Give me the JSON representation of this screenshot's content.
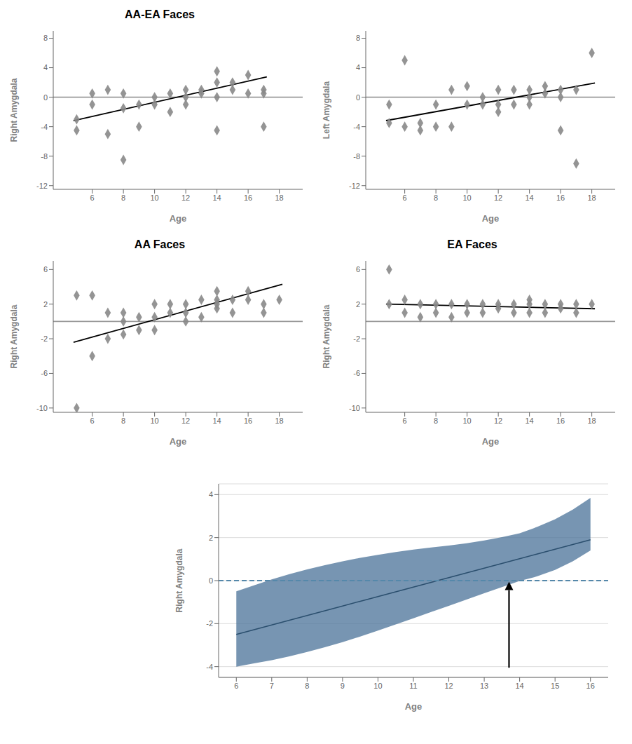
{
  "chart_data": [
    {
      "type": "scatter",
      "title": "AA-EA Faces",
      "xlabel": "Age",
      "ylabel": "Right Amygdala",
      "grid": false,
      "xlim": [
        3.5,
        19.5
      ],
      "xticks": [
        6,
        8,
        10,
        12,
        14,
        16,
        18
      ],
      "ylim": [
        -12.5,
        9
      ],
      "yticks": [
        -12,
        -8,
        -4,
        0,
        4,
        8
      ],
      "series": [
        {
          "type": "line",
          "color": "#999999",
          "x": [
            3.5,
            19.5
          ],
          "values": [
            0,
            0
          ]
        },
        {
          "type": "scatter",
          "color": "#888888",
          "marker": "diamond",
          "x": [
            5,
            5,
            6,
            6,
            7,
            7,
            8,
            8,
            8,
            9,
            9,
            10,
            10,
            11,
            11,
            12,
            12,
            12,
            13,
            13,
            14,
            14,
            14,
            14,
            15,
            15,
            16,
            16,
            17,
            17,
            17
          ],
          "values": [
            -4.5,
            -3,
            0.5,
            -1,
            1,
            -5,
            0.5,
            -1.5,
            -8.5,
            -1,
            -4,
            0,
            -1,
            -2,
            0.5,
            0,
            -1,
            1,
            1,
            0.5,
            2,
            3.5,
            0,
            -4.5,
            2,
            1,
            0.5,
            3,
            1,
            0.5,
            -4
          ]
        },
        {
          "type": "line",
          "color": "#000000",
          "x": [
            4.8,
            17.2
          ],
          "values": [
            -3.196,
            2.756
          ]
        }
      ]
    },
    {
      "type": "scatter",
      "xlabel": "Age",
      "ylabel": "Left Amygdala",
      "grid": false,
      "xlim": [
        3.5,
        19.5
      ],
      "xticks": [
        6,
        8,
        10,
        12,
        14,
        16,
        18
      ],
      "ylim": [
        -12.5,
        9
      ],
      "yticks": [
        -12,
        -8,
        -4,
        0,
        4,
        8
      ],
      "series": [
        {
          "type": "line",
          "color": "#999999",
          "x": [
            3.5,
            19.5
          ],
          "values": [
            0,
            0
          ]
        },
        {
          "type": "scatter",
          "color": "#888888",
          "marker": "diamond",
          "x": [
            5,
            5,
            6,
            6,
            7,
            7,
            8,
            8,
            9,
            9,
            10,
            10,
            11,
            11,
            12,
            12,
            12,
            13,
            13,
            14,
            14,
            14,
            15,
            15,
            16,
            16,
            16,
            17,
            17,
            18
          ],
          "values": [
            -3.5,
            -1,
            5,
            -4,
            -3.5,
            -4.5,
            -1,
            -4,
            1,
            -4,
            -1,
            1.5,
            0,
            -1,
            -1,
            1,
            -2,
            1,
            -1,
            1,
            0,
            -1,
            0.5,
            1.5,
            0,
            1,
            -4.5,
            -9,
            1,
            6
          ]
        },
        {
          "type": "line",
          "color": "#000000",
          "x": [
            4.8,
            18.2
          ],
          "values": [
            -3.176,
            1.916
          ]
        }
      ]
    },
    {
      "type": "scatter",
      "title": "AA Faces",
      "xlabel": "Age",
      "ylabel": "Right Amygdala",
      "grid": false,
      "xlim": [
        3.5,
        19.5
      ],
      "xticks": [
        6,
        8,
        10,
        12,
        14,
        16,
        18
      ],
      "ylim": [
        -10.5,
        7
      ],
      "yticks": [
        -10,
        -6,
        -2,
        2,
        6
      ],
      "series": [
        {
          "type": "line",
          "color": "#999999",
          "x": [
            3.5,
            19.5
          ],
          "values": [
            0,
            0
          ]
        },
        {
          "type": "scatter",
          "color": "#888888",
          "marker": "diamond",
          "x": [
            5,
            5,
            6,
            6,
            7,
            7,
            8,
            8,
            8,
            9,
            9,
            10,
            10,
            10,
            11,
            11,
            12,
            12,
            12,
            13,
            13,
            14,
            14,
            14,
            14,
            15,
            15,
            16,
            16,
            17,
            17,
            18
          ],
          "values": [
            -10,
            3,
            3,
            -4,
            1,
            -2,
            1,
            -1.5,
            0,
            0.5,
            -1,
            0.5,
            2,
            -1,
            1,
            2,
            1,
            2,
            0,
            2.5,
            0.5,
            2.5,
            1.5,
            2,
            3.5,
            2.5,
            1,
            3.5,
            2.5,
            2,
            1,
            2.5
          ]
        },
        {
          "type": "line",
          "color": "#000000",
          "x": [
            4.8,
            18.2
          ],
          "values": [
            -2.4,
            4.3
          ]
        }
      ]
    },
    {
      "type": "scatter",
      "title": "EA Faces",
      "xlabel": "Age",
      "ylabel": "Right Amygdala",
      "grid": false,
      "xlim": [
        3.5,
        19.5
      ],
      "xticks": [
        6,
        8,
        10,
        12,
        14,
        16,
        18
      ],
      "ylim": [
        -10.5,
        7
      ],
      "yticks": [
        -10,
        -6,
        -2,
        2,
        6
      ],
      "series": [
        {
          "type": "line",
          "color": "#999999",
          "x": [
            3.5,
            19.5
          ],
          "values": [
            0,
            0
          ]
        },
        {
          "type": "scatter",
          "color": "#888888",
          "marker": "diamond",
          "x": [
            5,
            5,
            6,
            6,
            7,
            7,
            8,
            8,
            9,
            9,
            10,
            10,
            11,
            11,
            12,
            12,
            13,
            13,
            14,
            14,
            14,
            15,
            15,
            16,
            16,
            17,
            17,
            18
          ],
          "values": [
            6,
            2,
            2.5,
            1,
            2,
            0.5,
            2,
            1,
            2,
            0.5,
            2,
            1,
            2,
            1,
            2,
            1.5,
            2,
            1,
            2,
            1,
            2.5,
            2,
            1,
            2,
            1.5,
            2,
            1,
            2
          ]
        },
        {
          "type": "line",
          "color": "#000000",
          "x": [
            4.8,
            18.2
          ],
          "values": [
            2.008,
            1.472
          ]
        }
      ]
    },
    {
      "type": "line",
      "xlabel": "Age",
      "ylabel": "Right Amygdala",
      "grid": "y",
      "xlim": [
        5.5,
        16.5
      ],
      "xticks": [
        6,
        7,
        8,
        9,
        10,
        11,
        12,
        13,
        14,
        15,
        16
      ],
      "ylim": [
        -4.5,
        4.5
      ],
      "yticks": [
        -4,
        -2,
        0,
        2,
        4
      ],
      "x": [
        6.0,
        6.5,
        7.0,
        7.5,
        8.0,
        8.5,
        9.0,
        9.5,
        10.0,
        10.5,
        11.0,
        11.5,
        12.0,
        12.5,
        13.0,
        13.5,
        14.0,
        14.5,
        15.0,
        15.5,
        16.0
      ],
      "series": [
        {
          "type": "band",
          "color": "#4a7298",
          "lower": [
            -4.0,
            -3.85,
            -3.7,
            -3.52,
            -3.32,
            -3.1,
            -2.86,
            -2.6,
            -2.32,
            -2.04,
            -1.75,
            -1.46,
            -1.17,
            -0.88,
            -0.59,
            -0.3,
            -0.02,
            0.2,
            0.5,
            0.9,
            1.4
          ],
          "upper": [
            -0.5,
            -0.22,
            0.06,
            0.3,
            0.52,
            0.72,
            0.9,
            1.06,
            1.2,
            1.33,
            1.44,
            1.54,
            1.63,
            1.74,
            1.87,
            2.02,
            2.2,
            2.5,
            2.85,
            3.3,
            3.85
          ]
        },
        {
          "type": "line",
          "color": "#2b4f6e",
          "values": [
            -2.5,
            -2.28,
            -2.06,
            -1.84,
            -1.62,
            -1.4,
            -1.18,
            -0.96,
            -0.74,
            -0.52,
            -0.3,
            -0.08,
            0.14,
            0.36,
            0.58,
            0.8,
            1.02,
            1.24,
            1.46,
            1.68,
            1.9
          ]
        },
        {
          "type": "line",
          "color": "#5588aa",
          "line_style": "dashed",
          "x": [
            5.5,
            16.5
          ],
          "values": [
            0,
            0
          ]
        }
      ],
      "arrow": {
        "x": 13.7,
        "y_start": -4.05,
        "y_end": -0.05,
        "color": "#000000"
      }
    }
  ]
}
